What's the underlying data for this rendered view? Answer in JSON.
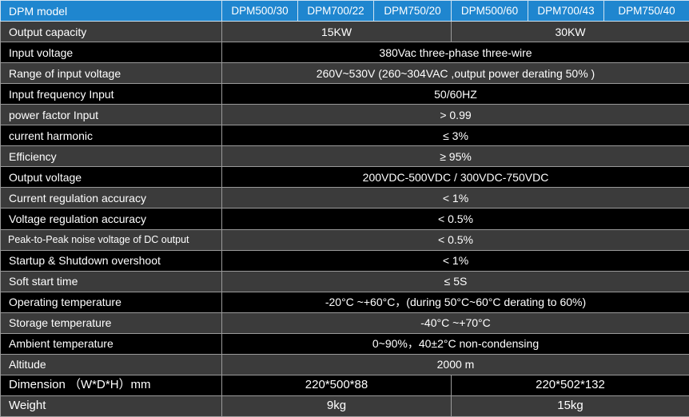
{
  "header": {
    "label": "DPM model",
    "models": [
      "DPM500/30",
      "DPM700/22",
      "DPM750/20",
      "DPM500/60",
      "DPM700/43",
      "DPM750/40"
    ]
  },
  "rows": {
    "output_capacity": {
      "label": "Output capacity",
      "group_a": "15KW",
      "group_b": "30KW"
    },
    "input_voltage": {
      "label": "Input voltage",
      "value": "380Vac three-phase three-wire"
    },
    "range_input_voltage": {
      "label": "Range of input voltage",
      "value": "260V~530V (260~304VAC ,output power derating 50% )"
    },
    "input_frequency": {
      "label": "Input frequency Input",
      "value": "50/60HZ"
    },
    "power_factor": {
      "label": "power factor Input",
      "value": "> 0.99"
    },
    "current_harmonic": {
      "label": "current harmonic",
      "value": "≤ 3%"
    },
    "efficiency": {
      "label": "Efficiency",
      "value": "≥ 95%"
    },
    "output_voltage": {
      "label": "Output voltage",
      "value": "200VDC-500VDC / 300VDC-750VDC"
    },
    "current_regulation": {
      "label": "Current regulation accuracy",
      "value": "< 1%"
    },
    "voltage_regulation": {
      "label": "Voltage regulation accuracy",
      "value": "< 0.5%"
    },
    "ripple_noise": {
      "label": "Peak-to-Peak noise voltage of DC output",
      "value": "< 0.5%"
    },
    "overshoot": {
      "label": "Startup & Shutdown overshoot",
      "value": "< 1%"
    },
    "soft_start": {
      "label": "Soft start time",
      "value": "≤ 5S"
    },
    "operating_temp": {
      "label": "Operating temperature",
      "value": "-20°C ~+60°C，(during 50°C~60°C derating to 60%)"
    },
    "storage_temp": {
      "label": "Storage temperature",
      "value": "-40°C ~+70°C"
    },
    "ambient_temp": {
      "label": "Ambient temperature",
      "value": "0~90%，40±2°C non-condensing"
    },
    "altitude": {
      "label": "Altitude",
      "value": "2000 m"
    },
    "dimension": {
      "label": "Dimension （W*D*H）mm",
      "group_a": "220*500*88",
      "group_b": "220*502*132"
    },
    "weight": {
      "label": "Weight",
      "group_a": "9kg",
      "group_b": "15kg"
    }
  }
}
